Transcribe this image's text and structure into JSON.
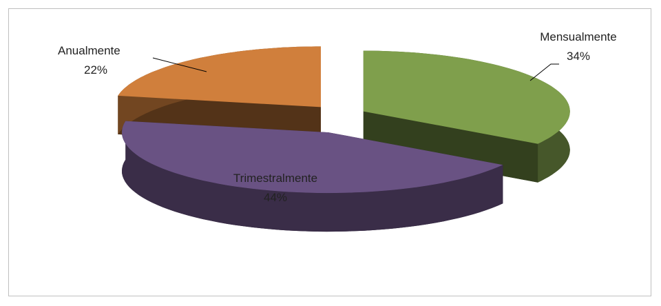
{
  "chart_data": {
    "type": "pie3d",
    "categories": [
      "Mensualmente",
      "Trimestralmente",
      "Anualmente"
    ],
    "values": [
      34,
      44,
      22
    ],
    "value_labels": [
      "34%",
      "44%",
      "22%"
    ],
    "colors": [
      "#7f9f4c",
      "#695283",
      "#d07f3c"
    ]
  }
}
